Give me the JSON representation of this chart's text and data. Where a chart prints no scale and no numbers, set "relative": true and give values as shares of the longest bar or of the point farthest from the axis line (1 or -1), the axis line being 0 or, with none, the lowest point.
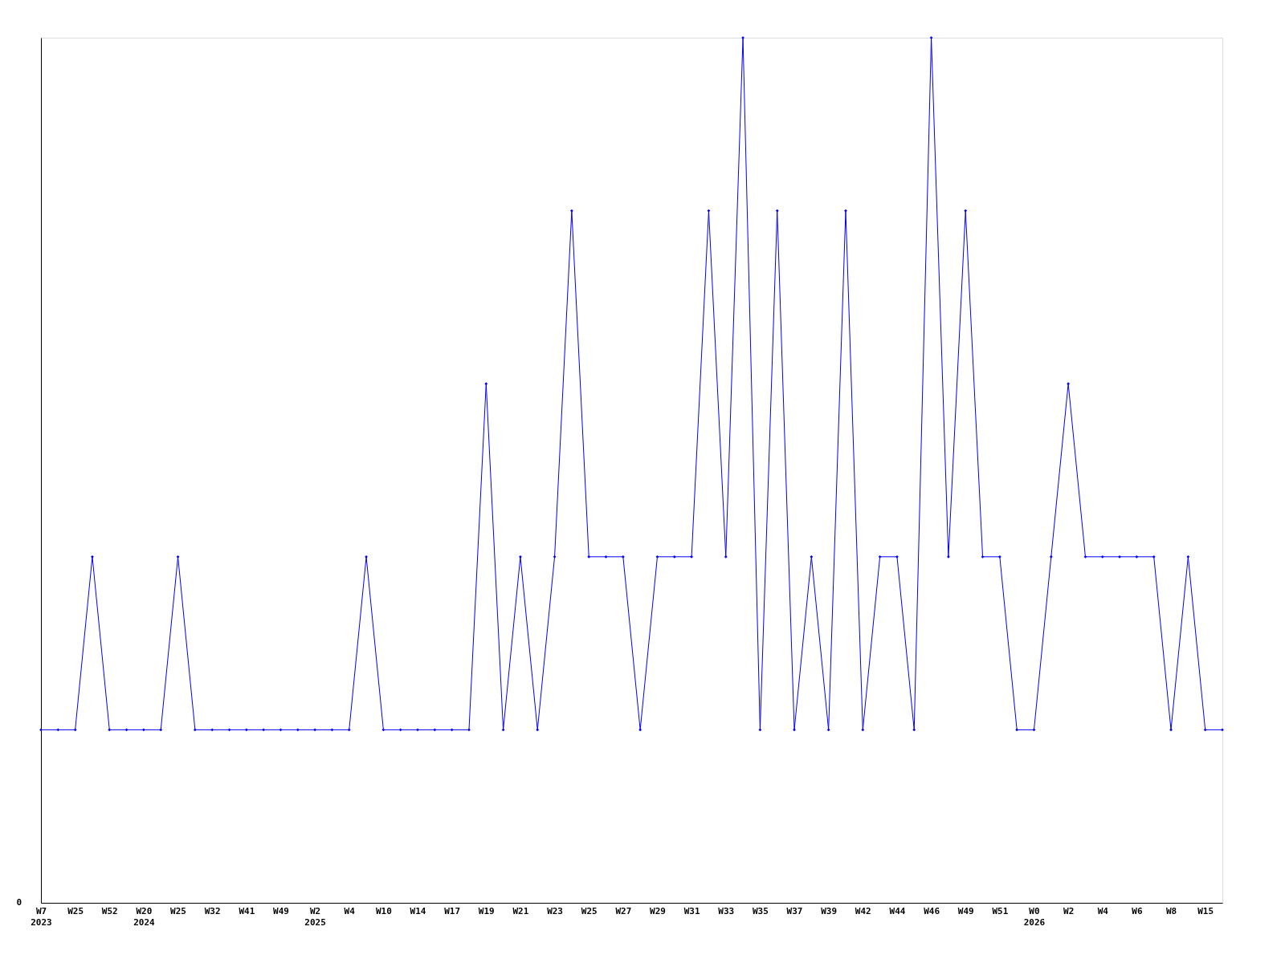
{
  "chart_data": {
    "type": "line",
    "relative": true,
    "marker": "diamond",
    "line_style": "solid",
    "grid": false,
    "categories": [
      "W7\n2023",
      null,
      "W25",
      null,
      "W52",
      null,
      "W20\n2024",
      null,
      "W25",
      null,
      "W32",
      null,
      "W41",
      null,
      "W49",
      null,
      "W2\n2025",
      null,
      "W4",
      null,
      "W10",
      null,
      "W14",
      null,
      "W17",
      null,
      "W19",
      null,
      "W21",
      null,
      "W23",
      null,
      "W25",
      null,
      "W27",
      null,
      "W29",
      null,
      "W31",
      null,
      "W33",
      null,
      "W35",
      null,
      "W37",
      null,
      "W39",
      null,
      "W42",
      null,
      "W44",
      null,
      "W46",
      null,
      "W49",
      null,
      "W51",
      null,
      "W0\n2026",
      null,
      "W2",
      null,
      "W4",
      null,
      "W6",
      null,
      "W8",
      null,
      "W15",
      null
    ],
    "series": [
      {
        "color": "#0000ff",
        "values": [
          0.2,
          0.2,
          0.2,
          0.4,
          0.2,
          0.2,
          0.2,
          0.2,
          0.4,
          0.2,
          0.2,
          0.2,
          0.2,
          0.2,
          0.2,
          0.2,
          0.2,
          0.2,
          0.2,
          0.4,
          0.2,
          0.2,
          0.2,
          0.2,
          0.2,
          0.2,
          0.6,
          0.2,
          0.4,
          0.2,
          0.4,
          0.8,
          0.4,
          0.4,
          0.4,
          0.2,
          0.4,
          0.4,
          0.4,
          0.8,
          0.4,
          1,
          0.2,
          0.8,
          0.2,
          0.4,
          0.2,
          0.8,
          0.2,
          0.4,
          0.4,
          0.2,
          1,
          0.4,
          0.8,
          0.4,
          0.4,
          0.2,
          0.2,
          0.4,
          0.6,
          0.4,
          0.4,
          0.4,
          0.4,
          0.4,
          0.2,
          0.4,
          0.2,
          0.2
        ]
      }
    ],
    "annotations": [
      "0"
    ]
  }
}
